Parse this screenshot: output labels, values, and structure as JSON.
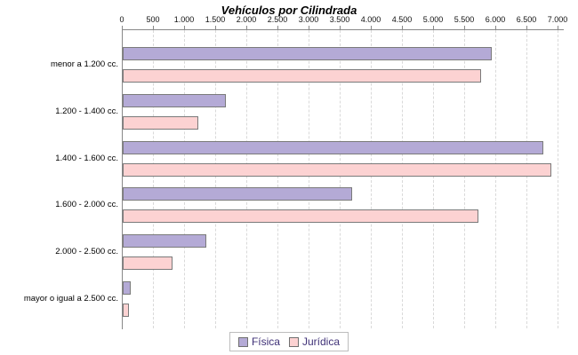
{
  "title": "Vehículos por Cilindrada",
  "chart_data": {
    "type": "bar",
    "orientation": "horizontal",
    "title": "Vehículos por Cilindrada",
    "categories": [
      "menor a 1.200 cc.",
      "1.200 - 1.400 cc.",
      "1.400 - 1.600 cc.",
      "1.600 - 2.000 cc.",
      "2.000 - 2.500 cc.",
      "mayor o igual a 2.500 cc."
    ],
    "series": [
      {
        "name": "Física",
        "color": "#b4aad6",
        "values": [
          5930,
          1660,
          6760,
          3690,
          1340,
          130
        ]
      },
      {
        "name": "Jurídica",
        "color": "#fcd2d2",
        "values": [
          5750,
          1210,
          6880,
          5710,
          800,
          100
        ]
      }
    ],
    "xlim": [
      0,
      7000
    ],
    "xtick_step": 500,
    "xtick_labels": [
      "0",
      "500",
      "1.000",
      "1.500",
      "2.000",
      "2.500",
      "3.000",
      "3.500",
      "4.000",
      "4.500",
      "5.000",
      "5.500",
      "6.000",
      "6.500",
      "7.000"
    ],
    "grid": "vertical-dashed",
    "legend_position": "bottom",
    "axis_position": "top"
  },
  "colors": {
    "fisica_fill": "#b4aad6",
    "juridica_fill": "#fcd2d2",
    "bar_border": "#7a7a7a",
    "axis": "#888888",
    "gridline": "#d9d9d9",
    "legend_text": "#3f3177",
    "background": "#ffffff"
  },
  "legend": {
    "items": [
      {
        "label": "Física",
        "color": "#b4aad6"
      },
      {
        "label": "Jurídica",
        "color": "#fcd2d2"
      }
    ]
  }
}
